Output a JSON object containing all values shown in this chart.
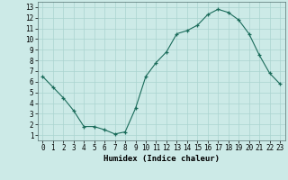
{
  "x": [
    0,
    1,
    2,
    3,
    4,
    5,
    6,
    7,
    8,
    9,
    10,
    11,
    12,
    13,
    14,
    15,
    16,
    17,
    18,
    19,
    20,
    21,
    22,
    23
  ],
  "y": [
    6.5,
    5.5,
    4.5,
    3.3,
    1.8,
    1.8,
    1.5,
    1.1,
    1.3,
    3.5,
    6.5,
    7.8,
    8.8,
    10.5,
    10.8,
    11.3,
    12.3,
    12.8,
    12.5,
    11.8,
    10.5,
    8.5,
    6.8,
    5.8
  ],
  "line_color": "#1a6b5a",
  "marker": "+",
  "markersize": 3.5,
  "linewidth": 0.8,
  "bg_color": "#cceae7",
  "grid_color": "#aad4d0",
  "xlabel": "Humidex (Indice chaleur)",
  "xlabel_fontsize": 6.5,
  "tick_fontsize": 5.5,
  "xlim": [
    -0.5,
    23.5
  ],
  "ylim": [
    0.5,
    13.5
  ],
  "yticks": [
    1,
    2,
    3,
    4,
    5,
    6,
    7,
    8,
    9,
    10,
    11,
    12,
    13
  ],
  "xticks": [
    0,
    1,
    2,
    3,
    4,
    5,
    6,
    7,
    8,
    9,
    10,
    11,
    12,
    13,
    14,
    15,
    16,
    17,
    18,
    19,
    20,
    21,
    22,
    23
  ]
}
